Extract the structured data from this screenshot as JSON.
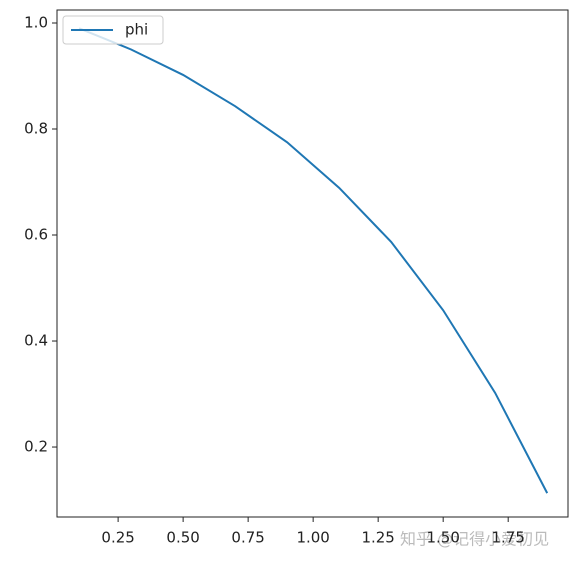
{
  "chart_data": {
    "type": "line",
    "x": [
      0.1,
      0.3,
      0.5,
      0.7,
      0.9,
      1.1,
      1.3,
      1.5,
      1.7,
      1.9
    ],
    "series": [
      {
        "name": "phi",
        "color": "#1f77b4",
        "values": [
          0.99,
          0.95,
          0.902,
          0.843,
          0.775,
          0.689,
          0.587,
          0.458,
          0.302,
          0.113
        ]
      }
    ],
    "xlim": [
      0.015,
      1.98
    ],
    "ylim": [
      0.068,
      1.0245
    ],
    "xticks": [
      0.25,
      {
        "value": 0.5,
        "label": "0.50"
      },
      0.75,
      {
        "value": 1.0,
        "label": "1.00"
      },
      1.25,
      {
        "value": 1.5,
        "label": "1.50"
      },
      1.75
    ],
    "yticks": [
      0.2,
      0.4,
      0.6,
      0.8,
      {
        "value": 1.0,
        "label": "1.0"
      }
    ],
    "legend": "upper left",
    "grid": false,
    "watermark": "知乎 @记得小爱初见"
  }
}
